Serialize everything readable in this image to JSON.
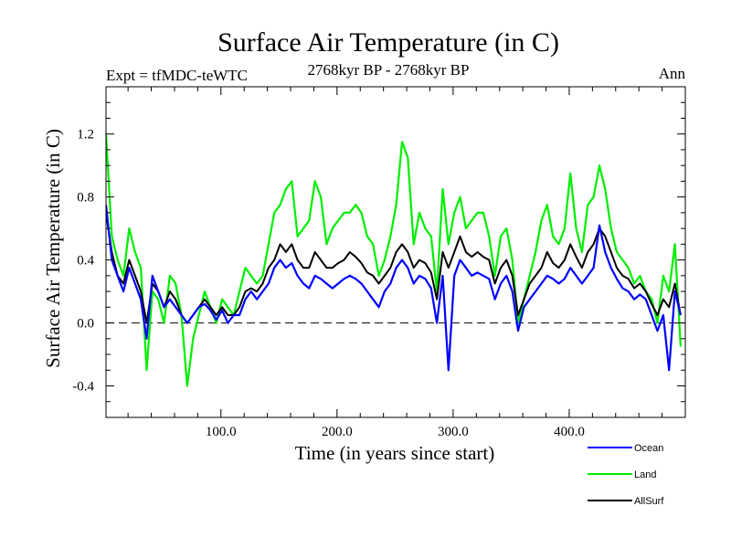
{
  "chart_data": {
    "type": "line",
    "title": "Surface Air Temperature (in C)",
    "subtitle_left": "Expt = tfMDC-teWTC",
    "subtitle_center": "2768kyr BP - 2768kyr BP",
    "subtitle_right": "Ann",
    "xlabel": "Time (in years since start)",
    "ylabel": "Surface Air Temperature (in C)",
    "xlim": [
      1,
      500
    ],
    "ylim": [
      -0.6,
      1.5
    ],
    "x_ticks": [
      100,
      200,
      300,
      400
    ],
    "x_tick_labels": [
      "100.0",
      "200.0",
      "300.0",
      "400.0"
    ],
    "y_ticks": [
      -0.4,
      0.0,
      0.4,
      0.8,
      1.2
    ],
    "y_tick_labels": [
      "-0.4",
      "0.0",
      "0.4",
      "0.8",
      "1.2"
    ],
    "reference_line": {
      "y": 0.0,
      "style": "dashed"
    },
    "x_step": 5,
    "series": [
      {
        "name": "Land",
        "color": "#00ee00",
        "values": [
          1.2,
          0.55,
          0.4,
          0.3,
          0.6,
          0.45,
          0.35,
          -0.3,
          0.2,
          0.15,
          0.0,
          0.3,
          0.25,
          0.05,
          -0.4,
          -0.1,
          0.05,
          0.2,
          0.1,
          0.0,
          0.15,
          0.1,
          0.05,
          0.2,
          0.35,
          0.3,
          0.25,
          0.3,
          0.5,
          0.7,
          0.75,
          0.85,
          0.9,
          0.55,
          0.6,
          0.65,
          0.9,
          0.8,
          0.5,
          0.6,
          0.65,
          0.7,
          0.7,
          0.75,
          0.7,
          0.55,
          0.5,
          0.3,
          0.4,
          0.55,
          0.75,
          1.15,
          1.05,
          0.5,
          0.7,
          0.6,
          0.55,
          0.2,
          0.85,
          0.5,
          0.7,
          0.8,
          0.6,
          0.65,
          0.7,
          0.7,
          0.55,
          0.3,
          0.55,
          0.6,
          0.4,
          0.0,
          0.15,
          0.3,
          0.45,
          0.65,
          0.75,
          0.55,
          0.5,
          0.6,
          0.95,
          0.6,
          0.45,
          0.75,
          0.8,
          1.0,
          0.85,
          0.6,
          0.45,
          0.4,
          0.35,
          0.25,
          0.3,
          0.2,
          0.15,
          0.0,
          0.3,
          0.2,
          0.5,
          -0.15
        ]
      },
      {
        "name": "AllSurf",
        "color": "#000000",
        "values": [
          0.7,
          0.45,
          0.3,
          0.25,
          0.4,
          0.3,
          0.2,
          0.0,
          0.25,
          0.2,
          0.1,
          0.2,
          0.15,
          0.05,
          0.0,
          0.05,
          0.1,
          0.15,
          0.1,
          0.05,
          0.1,
          0.05,
          0.05,
          0.1,
          0.2,
          0.22,
          0.2,
          0.25,
          0.35,
          0.4,
          0.5,
          0.45,
          0.5,
          0.4,
          0.35,
          0.35,
          0.45,
          0.4,
          0.35,
          0.35,
          0.38,
          0.4,
          0.45,
          0.42,
          0.38,
          0.32,
          0.3,
          0.25,
          0.3,
          0.35,
          0.45,
          0.5,
          0.45,
          0.35,
          0.4,
          0.38,
          0.32,
          0.15,
          0.45,
          0.35,
          0.45,
          0.55,
          0.45,
          0.42,
          0.45,
          0.42,
          0.4,
          0.25,
          0.35,
          0.4,
          0.3,
          0.05,
          0.15,
          0.25,
          0.3,
          0.35,
          0.45,
          0.38,
          0.35,
          0.4,
          0.5,
          0.42,
          0.35,
          0.45,
          0.5,
          0.6,
          0.55,
          0.45,
          0.35,
          0.3,
          0.28,
          0.22,
          0.25,
          0.2,
          0.12,
          0.05,
          0.15,
          0.1,
          0.25,
          0.05
        ]
      },
      {
        "name": "Ocean",
        "color": "#0000ff",
        "values": [
          0.75,
          0.4,
          0.3,
          0.2,
          0.35,
          0.25,
          0.15,
          -0.1,
          0.3,
          0.2,
          0.1,
          0.15,
          0.1,
          0.05,
          0.0,
          0.05,
          0.1,
          0.12,
          0.08,
          0.02,
          0.08,
          0.0,
          0.05,
          0.05,
          0.15,
          0.2,
          0.15,
          0.2,
          0.25,
          0.35,
          0.4,
          0.35,
          0.38,
          0.3,
          0.25,
          0.22,
          0.3,
          0.28,
          0.25,
          0.22,
          0.25,
          0.28,
          0.3,
          0.28,
          0.25,
          0.2,
          0.15,
          0.1,
          0.2,
          0.25,
          0.35,
          0.4,
          0.35,
          0.25,
          0.3,
          0.28,
          0.22,
          0.0,
          0.3,
          -0.3,
          0.3,
          0.4,
          0.35,
          0.3,
          0.32,
          0.3,
          0.28,
          0.15,
          0.25,
          0.3,
          0.2,
          -0.05,
          0.1,
          0.15,
          0.2,
          0.25,
          0.3,
          0.28,
          0.25,
          0.28,
          0.35,
          0.3,
          0.25,
          0.3,
          0.35,
          0.62,
          0.45,
          0.35,
          0.28,
          0.22,
          0.2,
          0.15,
          0.18,
          0.15,
          0.05,
          -0.05,
          0.05,
          -0.3,
          0.2,
          0.05
        ]
      }
    ],
    "legend": [
      {
        "name": "Ocean",
        "color": "#0000ff"
      },
      {
        "name": "Land",
        "color": "#00ee00"
      },
      {
        "name": "AllSurf",
        "color": "#000000"
      }
    ],
    "legend_position": "bottom-right"
  }
}
